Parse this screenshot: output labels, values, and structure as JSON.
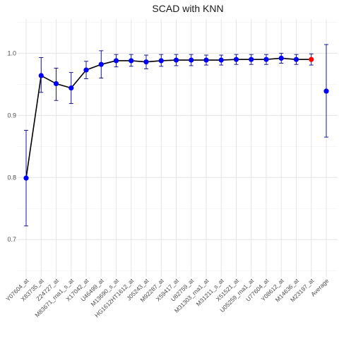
{
  "chart_data": {
    "type": "scatter",
    "title": "SCAD with KNN",
    "xlabel": "",
    "ylabel": "",
    "ylim": [
      0.64,
      1.055
    ],
    "grid": true,
    "legend": "none",
    "y_ticks": [
      0.7,
      0.8,
      0.9,
      1.0
    ],
    "y_tick_labels": [
      "0.7",
      "0.8",
      "0.9",
      "1.0"
    ],
    "categories": [
      "Y07604_at",
      "X83735_at",
      "Z24727_at",
      "M83671_rna1_s_at",
      "X17042_at",
      "U46499_at",
      "M13690_s_at",
      "HG1612HT1612_at",
      "J05243_at",
      "M92287_at",
      "X59417_at",
      "U82759_at",
      "M31303_rna1_at",
      "M31211_s_at",
      "X51521_at",
      "U05259_rna1_at",
      "U77604_at",
      "Y08612_at",
      "M14636_at",
      "M23197_at",
      "Average"
    ],
    "values": [
      0.799,
      0.964,
      0.951,
      0.944,
      0.973,
      0.982,
      0.988,
      0.988,
      0.986,
      0.988,
      0.989,
      0.989,
      0.989,
      0.989,
      0.99,
      0.99,
      0.99,
      0.992,
      0.99,
      0.99,
      0.939
    ],
    "err_low": [
      0.722,
      0.937,
      0.924,
      0.919,
      0.959,
      0.96,
      0.978,
      0.979,
      0.975,
      0.979,
      0.98,
      0.98,
      0.981,
      0.981,
      0.982,
      0.982,
      0.982,
      0.984,
      0.982,
      0.981,
      0.865
    ],
    "err_high": [
      0.876,
      0.993,
      0.976,
      0.969,
      0.987,
      1.004,
      0.998,
      0.998,
      0.997,
      0.998,
      0.998,
      0.998,
      0.997,
      0.997,
      0.998,
      0.998,
      0.998,
      1.0,
      0.998,
      0.999,
      1.014
    ],
    "point_colors": [
      "#0000ff",
      "#0000ff",
      "#0000ff",
      "#0000ff",
      "#0000ff",
      "#0000ff",
      "#0000ff",
      "#0000ff",
      "#0000ff",
      "#0000ff",
      "#0000ff",
      "#0000ff",
      "#0000ff",
      "#0000ff",
      "#0000ff",
      "#0000ff",
      "#0000ff",
      "#0000ff",
      "#0000ff",
      "#ff0000",
      "#0000ff"
    ],
    "line_color": "#000000",
    "errorbar_color": "#00008b",
    "connected_points": 20
  }
}
